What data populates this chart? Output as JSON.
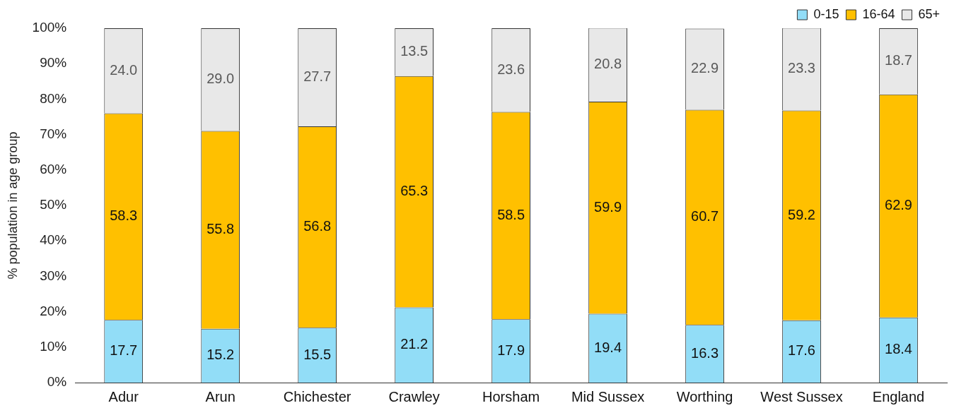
{
  "chart_data": {
    "type": "bar",
    "ylabel": "% population in age group",
    "categories": [
      "Adur",
      "Arun",
      "Chichester",
      "Crawley",
      "Horsham",
      "Mid Sussex",
      "Worthing",
      "West Sussex",
      "England"
    ],
    "series": [
      {
        "name": "0-15",
        "color": "#92ddf7",
        "values": [
          17.7,
          15.2,
          15.5,
          21.2,
          17.9,
          19.4,
          16.3,
          17.6,
          18.4
        ],
        "value_labels": [
          "17.7",
          "15.2",
          "15.5",
          "21.2",
          "17.9",
          "19.4",
          "16.3",
          "17.6",
          "18.4"
        ]
      },
      {
        "name": "16-64",
        "color": "#ffc000",
        "values": [
          58.3,
          55.8,
          56.8,
          65.3,
          58.5,
          59.9,
          60.7,
          59.2,
          62.9
        ],
        "value_labels": [
          "58.3",
          "55.8",
          "56.8",
          "65.3",
          "58.5",
          "59.9",
          "60.7",
          "59.2",
          "62.9"
        ]
      },
      {
        "name": "65+",
        "color": "#e8e8e8",
        "values": [
          24.0,
          29.0,
          27.7,
          13.5,
          23.6,
          20.8,
          22.9,
          23.3,
          18.7
        ],
        "value_labels": [
          "24.0",
          "29.0",
          "27.7",
          "13.5",
          "23.6",
          "20.8",
          "22.9",
          "23.3",
          "18.7"
        ]
      }
    ],
    "stacked": true,
    "legend": "top right",
    "grid": false,
    "ylim": [
      0,
      100
    ],
    "yticks": [
      {
        "value": 0,
        "label": "0%"
      },
      {
        "value": 10,
        "label": "10%"
      },
      {
        "value": 20,
        "label": "20%"
      },
      {
        "value": 30,
        "label": "30%"
      },
      {
        "value": 40,
        "label": "40%"
      },
      {
        "value": 50,
        "label": "50%"
      },
      {
        "value": 60,
        "label": "60%"
      },
      {
        "value": 70,
        "label": "70%"
      },
      {
        "value": 80,
        "label": "80%"
      },
      {
        "value": 90,
        "label": "90%"
      },
      {
        "value": 100,
        "label": "100%"
      }
    ]
  }
}
